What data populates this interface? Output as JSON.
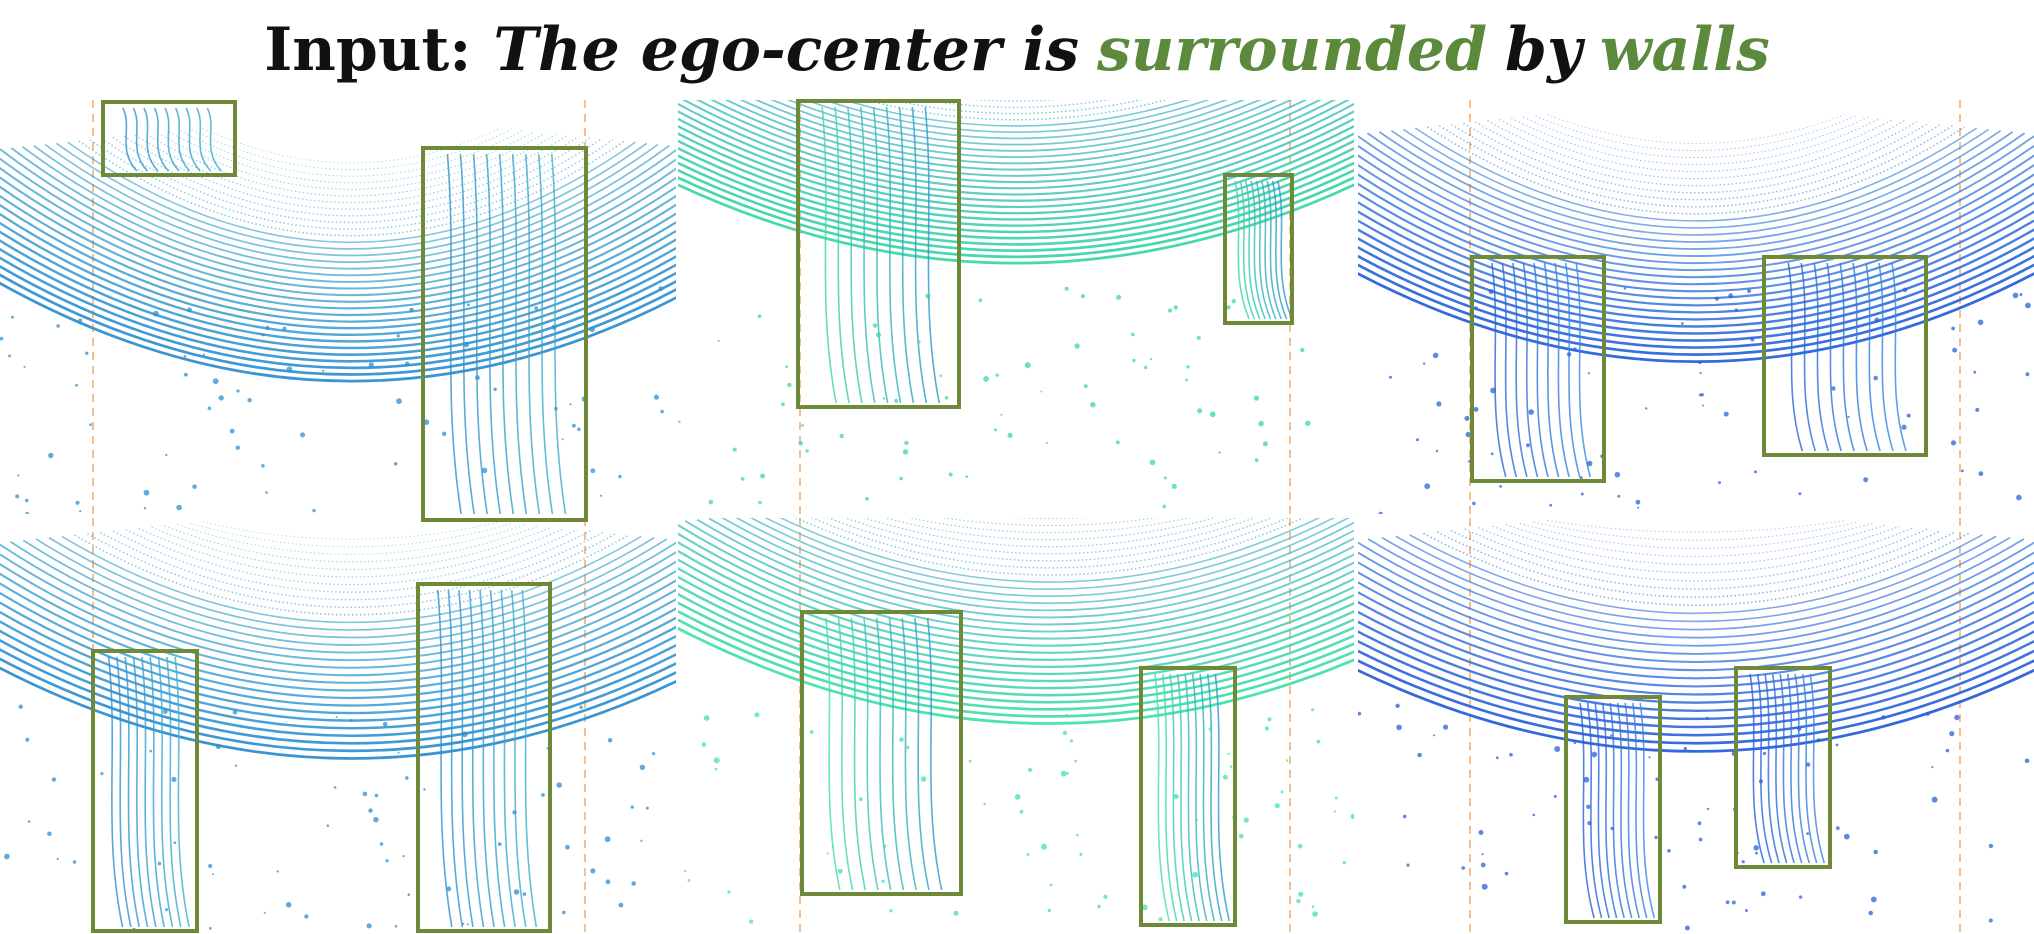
{
  "title": {
    "prefix": "Input:",
    "segments": [
      {
        "text": "The ego-center is",
        "emphasis": false
      },
      {
        "text": "surrounded",
        "emphasis": true
      },
      {
        "text": "by",
        "emphasis": false
      },
      {
        "text": "walls",
        "emphasis": true
      }
    ]
  },
  "colors": {
    "text": "#111111",
    "emphasis": "#5b8a3c",
    "box": "#6e8a38",
    "guide": "#f0a868"
  },
  "panels": [
    {
      "id": "top-left",
      "palette": [
        "#2f8fd0",
        "#40b2c8"
      ],
      "box_count": 2
    },
    {
      "id": "top-middle",
      "palette": [
        "#3ed7a6",
        "#2a8fd2"
      ],
      "box_count": 2
    },
    {
      "id": "top-right",
      "palette": [
        "#2864d8",
        "#3c8fe0"
      ],
      "box_count": 2
    },
    {
      "id": "bottom-left",
      "palette": [
        "#2e8ed2",
        "#3fb4ca"
      ],
      "box_count": 2
    },
    {
      "id": "bottom-middle",
      "palette": [
        "#45e0a8",
        "#2b90d0"
      ],
      "box_count": 2
    },
    {
      "id": "bottom-right",
      "palette": [
        "#2860da",
        "#4088e0"
      ],
      "box_count": 2
    }
  ]
}
